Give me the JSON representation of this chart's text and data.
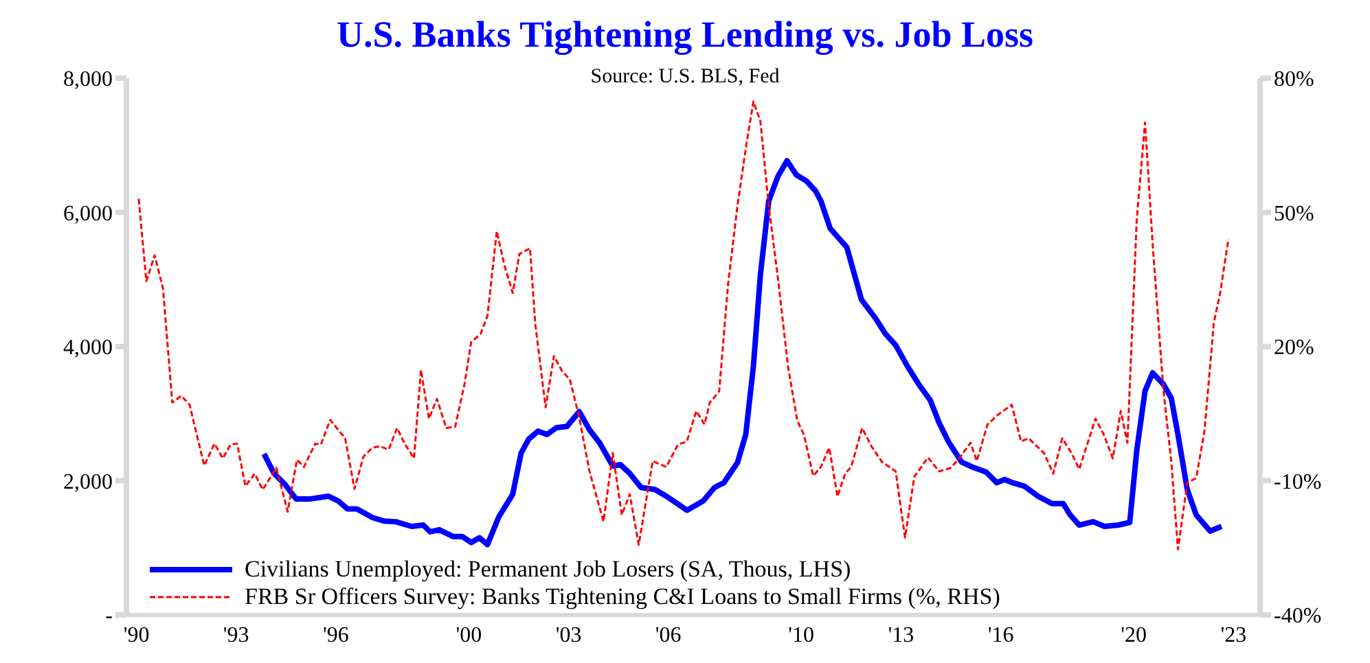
{
  "chart_data": {
    "type": "line",
    "title": "U.S. Banks Tightening Lending vs. Job Loss",
    "annotations": [
      "Source: U.S. BLS, Fed"
    ],
    "xlim": [
      1989.7,
      2023.8
    ],
    "xticks": [
      {
        "value": 1990,
        "label": "'90"
      },
      {
        "value": 1993,
        "label": "'93"
      },
      {
        "value": 1996,
        "label": "'96"
      },
      {
        "value": 2000,
        "label": "'00"
      },
      {
        "value": 2003,
        "label": "'03"
      },
      {
        "value": 2006,
        "label": "'06"
      },
      {
        "value": 2010,
        "label": "'10"
      },
      {
        "value": 2013,
        "label": "'13"
      },
      {
        "value": 2016,
        "label": "'16"
      },
      {
        "value": 2020,
        "label": "'20"
      },
      {
        "value": 2023,
        "label": "'23"
      }
    ],
    "ylim": [
      0,
      8000
    ],
    "yticks": [
      {
        "value": 0,
        "label": "-"
      },
      {
        "value": 2000,
        "label": "2,000"
      },
      {
        "value": 4000,
        "label": "4,000"
      },
      {
        "value": 6000,
        "label": "6,000"
      },
      {
        "value": 8000,
        "label": "8,000"
      }
    ],
    "y2lim": [
      -40,
      80
    ],
    "y2ticks": [
      {
        "value": -40,
        "label": "-40%"
      },
      {
        "value": -10,
        "label": "-10%"
      },
      {
        "value": 20,
        "label": "20%"
      },
      {
        "value": 50,
        "label": "50%"
      },
      {
        "value": 80,
        "label": "80%"
      }
    ],
    "grid": false,
    "legend": "bottom left",
    "marker": "none",
    "series": [
      {
        "name": "Civilians Unemployed: Permanent Job Losers (SA, Thous, LHS)",
        "color": "#0000ff",
        "line_style": "solid",
        "x": [
          1993.84,
          1994.14,
          1994.48,
          1994.8,
          1995.24,
          1995.77,
          1996.07,
          1996.35,
          1996.63,
          1997.11,
          1997.45,
          1997.8,
          1998.28,
          1998.63,
          1998.83,
          1999.11,
          1999.52,
          1999.8,
          2000.07,
          2000.32,
          2000.56,
          2000.9,
          2001.32,
          2001.57,
          2001.8,
          2002.08,
          2002.35,
          2002.63,
          2002.95,
          2003.32,
          2003.63,
          2003.94,
          2004.33,
          2004.56,
          2004.84,
          2005.18,
          2005.6,
          2005.94,
          2006.36,
          2006.56,
          2007.05,
          2007.39,
          2007.67,
          2008.08,
          2008.33,
          2008.56,
          2008.77,
          2009.02,
          2009.3,
          2009.57,
          2009.85,
          2010.15,
          2010.43,
          2010.59,
          2010.87,
          2011.12,
          2011.37,
          2011.81,
          2012.22,
          2012.53,
          2012.84,
          2013.19,
          2013.53,
          2013.88,
          2014.15,
          2014.43,
          2014.82,
          2015.12,
          2015.56,
          2015.88,
          2016.11,
          2016.36,
          2016.71,
          2017.12,
          2017.54,
          2017.88,
          2018.09,
          2018.36,
          2018.78,
          2019.12,
          2019.54,
          2019.88,
          2020.09,
          2020.34,
          2020.57,
          2020.89,
          2021.13,
          2021.33,
          2021.61,
          2021.88,
          2022.3,
          2022.64
        ],
        "values": [
          2400,
          2110,
          1940,
          1730,
          1730,
          1770,
          1700,
          1580,
          1580,
          1450,
          1400,
          1390,
          1320,
          1340,
          1240,
          1270,
          1170,
          1170,
          1080,
          1150,
          1050,
          1460,
          1800,
          2410,
          2620,
          2740,
          2690,
          2790,
          2810,
          3030,
          2760,
          2560,
          2220,
          2240,
          2110,
          1900,
          1870,
          1770,
          1630,
          1560,
          1700,
          1900,
          1970,
          2270,
          2690,
          3710,
          5070,
          6170,
          6540,
          6770,
          6560,
          6470,
          6320,
          6170,
          5760,
          5620,
          5480,
          4700,
          4430,
          4190,
          4020,
          3710,
          3440,
          3200,
          2860,
          2580,
          2280,
          2210,
          2130,
          1970,
          2020,
          1970,
          1920,
          1770,
          1660,
          1660,
          1490,
          1340,
          1390,
          1320,
          1340,
          1380,
          2450,
          3340,
          3610,
          3440,
          3230,
          2690,
          1870,
          1490,
          1250,
          1320
        ]
      },
      {
        "name": "FRB Sr Officers Survey: Banks Tightening C&I Loans to Small Firms (%, RHS)",
        "color": "#ff0000",
        "line_style": "dashed",
        "axis": "y2",
        "x": [
          1990.07,
          1990.3,
          1990.55,
          1990.8,
          1991.08,
          1991.35,
          1991.6,
          1992.04,
          1992.35,
          1992.6,
          1992.83,
          1993.03,
          1993.28,
          1993.56,
          1993.8,
          1994.21,
          1994.55,
          1994.83,
          1995.04,
          1995.38,
          1995.55,
          1995.83,
          1996.28,
          1996.56,
          1996.83,
          1997.1,
          1997.31,
          1997.59,
          1997.84,
          1998.07,
          1998.35,
          1998.56,
          1998.8,
          1999.04,
          1999.32,
          1999.59,
          1999.87,
          2000.07,
          2000.35,
          2000.56,
          2000.84,
          2001.07,
          2001.32,
          2001.52,
          2001.84,
          2002.0,
          2002.31,
          2002.56,
          2002.8,
          2003.04,
          2003.32,
          2003.63,
          2004.05,
          2004.33,
          2004.6,
          2004.84,
          2005.11,
          2005.53,
          2005.94,
          2006.29,
          2006.56,
          2006.84,
          2007.09,
          2007.25,
          2007.53,
          2007.8,
          2008.08,
          2008.36,
          2008.56,
          2008.77,
          2009.02,
          2009.3,
          2009.6,
          2009.88,
          2010.08,
          2010.36,
          2010.59,
          2010.84,
          2011.09,
          2011.32,
          2011.5,
          2011.83,
          2012.11,
          2012.43,
          2012.84,
          2013.12,
          2013.4,
          2013.81,
          2014.15,
          2014.5,
          2014.77,
          2015.09,
          2015.28,
          2015.6,
          2015.94,
          2016.33,
          2016.61,
          2016.84,
          2017.3,
          2017.58,
          2017.85,
          2018.13,
          2018.36,
          2018.85,
          2019.1,
          2019.37,
          2019.61,
          2019.81,
          2020.09,
          2020.34,
          2020.57,
          2020.89,
          2021.13,
          2021.33,
          2021.61,
          2021.88,
          2022.13,
          2022.41,
          2022.6,
          2022.85
        ],
        "values": [
          53.0,
          34.6,
          40.4,
          33.0,
          7.5,
          9.0,
          7.0,
          -6.6,
          -1.7,
          -5.0,
          -1.9,
          -1.7,
          -11.2,
          -8.4,
          -12.0,
          -7.1,
          -16.9,
          -5.3,
          -6.9,
          -1.7,
          -1.9,
          3.6,
          -0.5,
          -11.8,
          -4.6,
          -2.6,
          -2.3,
          -3.0,
          1.8,
          -1.7,
          -5.0,
          14.8,
          3.9,
          8.3,
          1.8,
          2.1,
          11.6,
          21.0,
          22.8,
          26.9,
          45.8,
          38.2,
          32.0,
          40.7,
          42.0,
          24.9,
          6.4,
          17.9,
          14.6,
          12.6,
          4.2,
          -7.9,
          -19.1,
          -3.8,
          -17.6,
          -13.0,
          -24.3,
          -5.6,
          -6.9,
          -1.9,
          -1.2,
          5.6,
          2.6,
          7.5,
          10.0,
          34.1,
          51.5,
          65.8,
          74.8,
          70.4,
          51.5,
          35.1,
          15.6,
          3.4,
          0.3,
          -8.9,
          -6.9,
          -2.6,
          -13.5,
          -8.4,
          -6.9,
          1.8,
          -2.3,
          -5.8,
          -7.9,
          -22.7,
          -9.1,
          -4.8,
          -7.9,
          -7.1,
          -4.8,
          -1.5,
          -5.6,
          2.6,
          4.9,
          7.0,
          -1.2,
          -0.5,
          -3.8,
          -8.4,
          -0.5,
          -3.8,
          -7.4,
          3.9,
          0.3,
          -5.0,
          5.6,
          -1.5,
          48.4,
          70.1,
          42.8,
          10.5,
          -5.8,
          -25.3,
          -10.4,
          -9.4,
          1.3,
          25.4,
          32.0,
          44.1
        ]
      }
    ]
  }
}
